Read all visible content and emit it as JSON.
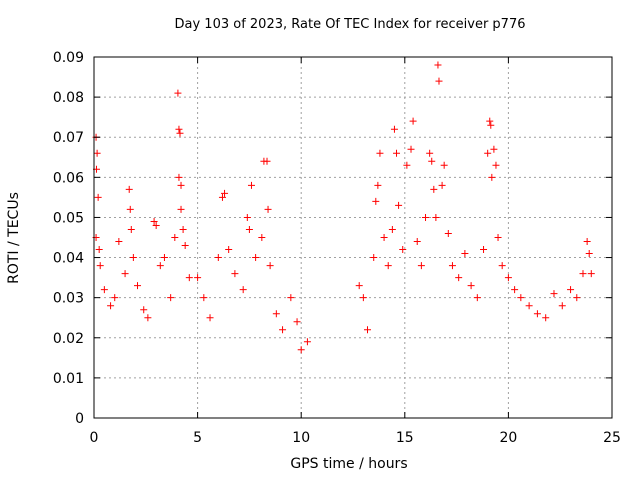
{
  "chart_data": {
    "type": "scatter",
    "title": "Day 103 of 2023, Rate Of TEC Index for receiver p776",
    "xlabel": "GPS time / hours",
    "ylabel": "ROTI / TECUs",
    "xlim": [
      0,
      25
    ],
    "ylim": [
      0,
      0.09
    ],
    "xticks": [
      "0",
      "5",
      "10",
      "15",
      "20",
      "25"
    ],
    "yticks": [
      "0",
      "0.01",
      "0.02",
      "0.03",
      "0.04",
      "0.05",
      "0.06",
      "0.07",
      "0.08",
      "0.09"
    ],
    "grid": true,
    "marker": "+",
    "marker_color": "#ff0000",
    "data_gap_hours": [
      10.6,
      12.7
    ],
    "series": [
      {
        "points": [
          [
            0.1,
            0.07
          ],
          [
            0.15,
            0.066
          ],
          [
            0.12,
            0.062
          ],
          [
            0.2,
            0.055
          ],
          [
            0.1,
            0.045
          ],
          [
            0.25,
            0.042
          ],
          [
            0.3,
            0.038
          ],
          [
            0.5,
            0.032
          ],
          [
            0.8,
            0.028
          ],
          [
            1.0,
            0.03
          ],
          [
            1.2,
            0.044
          ],
          [
            1.5,
            0.036
          ],
          [
            1.7,
            0.057
          ],
          [
            1.75,
            0.052
          ],
          [
            1.8,
            0.047
          ],
          [
            1.9,
            0.04
          ],
          [
            2.1,
            0.033
          ],
          [
            2.4,
            0.027
          ],
          [
            2.6,
            0.025
          ],
          [
            2.9,
            0.049
          ],
          [
            3.0,
            0.048
          ],
          [
            3.2,
            0.038
          ],
          [
            3.4,
            0.04
          ],
          [
            3.7,
            0.03
          ],
          [
            3.9,
            0.045
          ],
          [
            4.05,
            0.081
          ],
          [
            4.1,
            0.072
          ],
          [
            4.15,
            0.071
          ],
          [
            4.1,
            0.06
          ],
          [
            4.2,
            0.058
          ],
          [
            4.2,
            0.052
          ],
          [
            4.3,
            0.047
          ],
          [
            4.4,
            0.043
          ],
          [
            4.6,
            0.035
          ],
          [
            5.0,
            0.035
          ],
          [
            5.3,
            0.03
          ],
          [
            5.6,
            0.025
          ],
          [
            6.0,
            0.04
          ],
          [
            6.2,
            0.055
          ],
          [
            6.3,
            0.056
          ],
          [
            6.5,
            0.042
          ],
          [
            6.8,
            0.036
          ],
          [
            7.2,
            0.032
          ],
          [
            7.4,
            0.05
          ],
          [
            7.5,
            0.047
          ],
          [
            7.6,
            0.058
          ],
          [
            7.8,
            0.04
          ],
          [
            8.1,
            0.045
          ],
          [
            8.2,
            0.064
          ],
          [
            8.35,
            0.064
          ],
          [
            8.4,
            0.052
          ],
          [
            8.5,
            0.038
          ],
          [
            8.8,
            0.026
          ],
          [
            9.1,
            0.022
          ],
          [
            9.5,
            0.03
          ],
          [
            9.8,
            0.024
          ],
          [
            10.0,
            0.017
          ],
          [
            10.3,
            0.019
          ],
          [
            12.8,
            0.033
          ],
          [
            13.0,
            0.03
          ],
          [
            13.2,
            0.022
          ],
          [
            13.5,
            0.04
          ],
          [
            13.6,
            0.054
          ],
          [
            13.7,
            0.058
          ],
          [
            13.8,
            0.066
          ],
          [
            14.0,
            0.045
          ],
          [
            14.2,
            0.038
          ],
          [
            14.4,
            0.047
          ],
          [
            14.5,
            0.072
          ],
          [
            14.6,
            0.066
          ],
          [
            14.7,
            0.053
          ],
          [
            14.9,
            0.042
          ],
          [
            15.1,
            0.063
          ],
          [
            15.3,
            0.067
          ],
          [
            15.4,
            0.074
          ],
          [
            15.6,
            0.044
          ],
          [
            15.8,
            0.038
          ],
          [
            16.0,
            0.05
          ],
          [
            16.2,
            0.066
          ],
          [
            16.3,
            0.064
          ],
          [
            16.4,
            0.057
          ],
          [
            16.5,
            0.05
          ],
          [
            16.6,
            0.088
          ],
          [
            16.65,
            0.084
          ],
          [
            16.8,
            0.058
          ],
          [
            16.9,
            0.063
          ],
          [
            17.1,
            0.046
          ],
          [
            17.3,
            0.038
          ],
          [
            17.6,
            0.035
          ],
          [
            17.9,
            0.041
          ],
          [
            18.2,
            0.033
          ],
          [
            18.5,
            0.03
          ],
          [
            18.8,
            0.042
          ],
          [
            19.0,
            0.066
          ],
          [
            19.1,
            0.074
          ],
          [
            19.15,
            0.073
          ],
          [
            19.2,
            0.06
          ],
          [
            19.3,
            0.067
          ],
          [
            19.4,
            0.063
          ],
          [
            19.5,
            0.045
          ],
          [
            19.7,
            0.038
          ],
          [
            20.0,
            0.035
          ],
          [
            20.3,
            0.032
          ],
          [
            20.6,
            0.03
          ],
          [
            21.0,
            0.028
          ],
          [
            21.4,
            0.026
          ],
          [
            21.8,
            0.025
          ],
          [
            22.2,
            0.031
          ],
          [
            22.6,
            0.028
          ],
          [
            23.0,
            0.032
          ],
          [
            23.3,
            0.03
          ],
          [
            23.6,
            0.036
          ],
          [
            23.8,
            0.044
          ],
          [
            23.9,
            0.041
          ],
          [
            24.0,
            0.036
          ]
        ]
      }
    ]
  }
}
